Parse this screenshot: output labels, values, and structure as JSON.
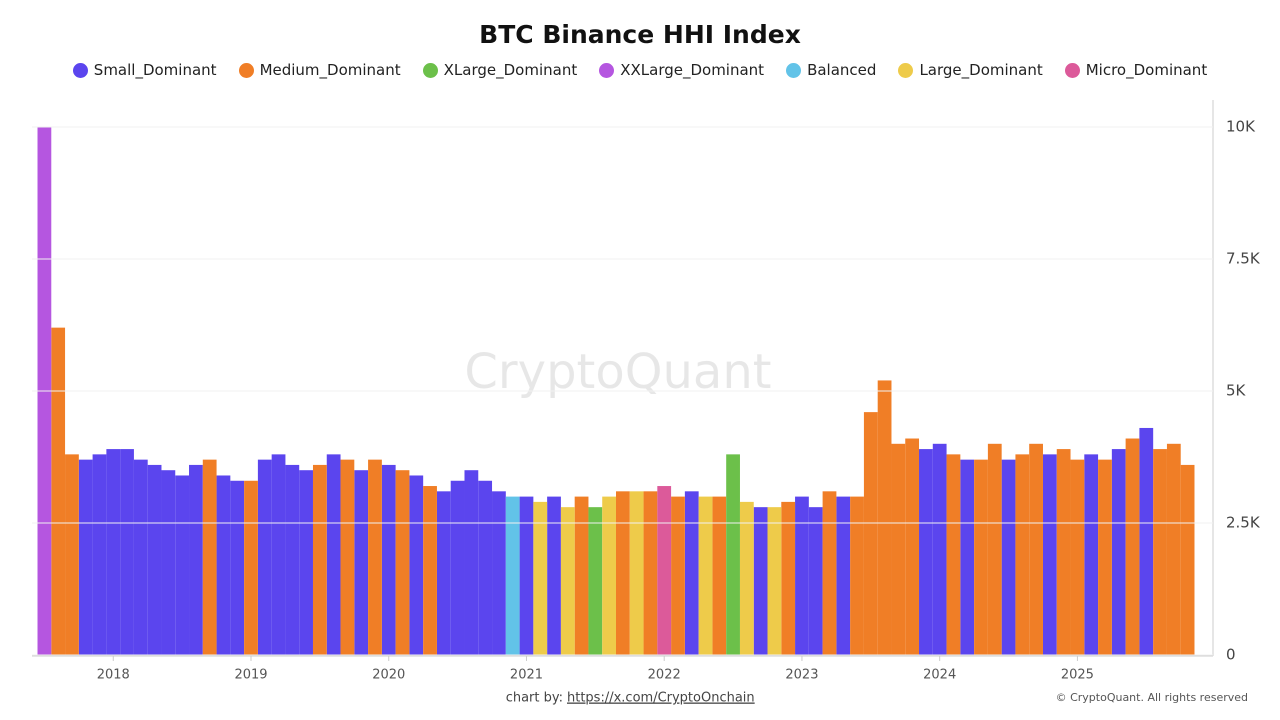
{
  "chart_data": {
    "type": "bar",
    "title": "BTC Binance HHI Index",
    "x": [
      2017.5,
      2017.6,
      2017.7,
      2017.8,
      2017.9,
      2018.0,
      2018.1,
      2018.2,
      2018.3,
      2018.4,
      2018.5,
      2018.6,
      2018.7,
      2018.8,
      2018.9,
      2019.0,
      2019.1,
      2019.2,
      2019.3,
      2019.4,
      2019.5,
      2019.6,
      2019.7,
      2019.8,
      2019.9,
      2020.0,
      2020.1,
      2020.2,
      2020.3,
      2020.4,
      2020.5,
      2020.6,
      2020.7,
      2020.8,
      2020.9,
      2021.0,
      2021.1,
      2021.2,
      2021.3,
      2021.4,
      2021.5,
      2021.6,
      2021.7,
      2021.8,
      2021.9,
      2022.0,
      2022.1,
      2022.2,
      2022.3,
      2022.4,
      2022.5,
      2022.6,
      2022.7,
      2022.8,
      2022.9,
      2023.0,
      2023.1,
      2023.2,
      2023.3,
      2023.4,
      2023.5,
      2023.6,
      2023.7,
      2023.8,
      2023.9,
      2024.0,
      2024.1,
      2024.2,
      2024.3,
      2024.4,
      2024.5,
      2024.6,
      2024.7,
      2024.8,
      2024.9,
      2025.0,
      2025.1,
      2025.2,
      2025.3,
      2025.4,
      2025.5,
      2025.6,
      2025.7,
      2025.8
    ],
    "series": [
      {
        "name": "Small_Dominant",
        "color": "#5b45ee",
        "values": [
          null,
          null,
          null,
          3700,
          3800,
          3900,
          3900,
          3700,
          3600,
          3500,
          3400,
          3600,
          null,
          3400,
          3300,
          null,
          3700,
          3800,
          3600,
          3500,
          null,
          3800,
          null,
          3500,
          null,
          3600,
          null,
          3400,
          null,
          3100,
          3300,
          3500,
          3300,
          3100,
          null,
          3000,
          null,
          3000,
          null,
          null,
          null,
          null,
          null,
          null,
          null,
          null,
          null,
          3100,
          null,
          null,
          null,
          null,
          2800,
          null,
          null,
          3000,
          2800,
          null,
          3000,
          null,
          null,
          null,
          null,
          null,
          3900,
          4000,
          null,
          3700,
          null,
          null,
          3700,
          null,
          null,
          3800,
          null,
          null,
          3800,
          null,
          3900,
          null,
          4300,
          null,
          null,
          null
        ]
      },
      {
        "name": "Medium_Dominant",
        "color": "#f07e26",
        "values": [
          null,
          6200,
          3800,
          null,
          null,
          null,
          null,
          null,
          null,
          null,
          null,
          null,
          3700,
          null,
          null,
          3300,
          null,
          null,
          null,
          null,
          3600,
          null,
          3700,
          null,
          3700,
          null,
          3500,
          null,
          3200,
          null,
          null,
          null,
          null,
          null,
          null,
          null,
          null,
          null,
          null,
          3000,
          null,
          null,
          3100,
          null,
          3100,
          null,
          3000,
          null,
          null,
          3000,
          null,
          null,
          null,
          null,
          2900,
          null,
          null,
          3100,
          null,
          3000,
          4600,
          5200,
          4000,
          4100,
          null,
          null,
          3800,
          null,
          3700,
          4000,
          null,
          3800,
          4000,
          null,
          3900,
          3700,
          null,
          3700,
          null,
          4100,
          null,
          3900,
          4000,
          3600
        ]
      },
      {
        "name": "XLarge_Dominant",
        "color": "#6cc04a",
        "values": [
          null,
          null,
          null,
          null,
          null,
          null,
          null,
          null,
          null,
          null,
          null,
          null,
          null,
          null,
          null,
          null,
          null,
          null,
          null,
          null,
          null,
          null,
          null,
          null,
          null,
          null,
          null,
          null,
          null,
          null,
          null,
          null,
          null,
          null,
          null,
          null,
          null,
          null,
          null,
          null,
          2800,
          null,
          null,
          null,
          null,
          null,
          null,
          null,
          null,
          null,
          3800,
          null,
          null,
          null,
          null,
          null,
          null,
          null,
          null,
          null,
          null,
          null,
          null,
          null,
          null,
          null,
          null,
          null,
          null,
          null,
          null,
          null,
          null,
          null,
          null,
          null,
          null,
          null,
          null,
          null,
          null,
          null,
          null,
          null
        ]
      },
      {
        "name": "XXLarge_Dominant",
        "color": "#b556e0",
        "values": [
          10000,
          null,
          null,
          null,
          null,
          null,
          null,
          null,
          null,
          null,
          null,
          null,
          null,
          null,
          null,
          null,
          null,
          null,
          null,
          null,
          null,
          null,
          null,
          null,
          null,
          null,
          null,
          null,
          null,
          null,
          null,
          null,
          null,
          null,
          null,
          null,
          null,
          null,
          null,
          null,
          null,
          null,
          null,
          null,
          null,
          null,
          null,
          null,
          null,
          null,
          null,
          null,
          null,
          null,
          null,
          null,
          null,
          null,
          null,
          null,
          null,
          null,
          null,
          null,
          null,
          null,
          null,
          null,
          null,
          null,
          null,
          null,
          null,
          null,
          null,
          null,
          null,
          null,
          null,
          null,
          null,
          null,
          null,
          null
        ]
      },
      {
        "name": "Balanced",
        "color": "#62c3e8",
        "values": [
          null,
          null,
          null,
          null,
          null,
          null,
          null,
          null,
          null,
          null,
          null,
          null,
          null,
          null,
          null,
          null,
          null,
          null,
          null,
          null,
          null,
          null,
          null,
          null,
          null,
          null,
          null,
          null,
          null,
          null,
          null,
          null,
          null,
          null,
          3000,
          null,
          null,
          null,
          null,
          null,
          null,
          null,
          null,
          null,
          null,
          null,
          null,
          null,
          null,
          null,
          null,
          null,
          null,
          null,
          null,
          null,
          null,
          null,
          null,
          null,
          null,
          null,
          null,
          null,
          null,
          null,
          null,
          null,
          null,
          null,
          null,
          null,
          null,
          null,
          null,
          null,
          null,
          null,
          null,
          null,
          null,
          null,
          null,
          null
        ]
      },
      {
        "name": "Large_Dominant",
        "color": "#eecb4a",
        "values": [
          null,
          null,
          null,
          null,
          null,
          null,
          null,
          null,
          null,
          null,
          null,
          null,
          null,
          null,
          null,
          null,
          null,
          null,
          null,
          null,
          null,
          null,
          null,
          null,
          null,
          null,
          null,
          null,
          null,
          null,
          null,
          null,
          null,
          null,
          null,
          null,
          2900,
          null,
          2800,
          null,
          null,
          3000,
          null,
          3100,
          null,
          null,
          null,
          null,
          3000,
          null,
          null,
          2900,
          null,
          2800,
          null,
          null,
          null,
          null,
          null,
          null,
          null,
          null,
          null,
          null,
          null,
          null,
          null,
          null,
          null,
          null,
          null,
          null,
          null,
          null,
          null,
          null,
          null,
          null,
          null,
          null,
          null,
          null,
          null,
          null
        ]
      },
      {
        "name": "Micro_Dominant",
        "color": "#dc5a9a",
        "values": [
          null,
          null,
          null,
          null,
          null,
          null,
          null,
          null,
          null,
          null,
          null,
          null,
          null,
          null,
          null,
          null,
          null,
          null,
          null,
          null,
          null,
          null,
          null,
          null,
          null,
          null,
          null,
          null,
          null,
          null,
          null,
          null,
          null,
          null,
          null,
          null,
          null,
          null,
          null,
          null,
          null,
          null,
          null,
          null,
          null,
          3200,
          null,
          null,
          null,
          null,
          null,
          null,
          null,
          null,
          null,
          null,
          null,
          null,
          null,
          null,
          null,
          null,
          null,
          null,
          null,
          null,
          null,
          null,
          null,
          null,
          null,
          null,
          null,
          null,
          null,
          null,
          null,
          null,
          null,
          null,
          null,
          null,
          null,
          null
        ]
      }
    ],
    "xlim": [
      2017.41,
      2025.89
    ],
    "xticks": [
      2018,
      2019,
      2020,
      2021,
      2022,
      2023,
      2024,
      2025
    ],
    "ylim": [
      0,
      10000
    ],
    "yticks": [
      0,
      {
        "value": 2500,
        "label": "2.5K"
      },
      {
        "value": 5000,
        "label": "5K"
      },
      {
        "value": 7500,
        "label": "7.5K"
      },
      {
        "value": 10000,
        "label": "10K"
      }
    ],
    "grid": true,
    "watermark": "CryptoQuant",
    "credit_prefix": "chart by:",
    "credit_link": "https://x.com/CryptoOnchain",
    "copyright": "© CryptoQuant. All rights reserved"
  }
}
